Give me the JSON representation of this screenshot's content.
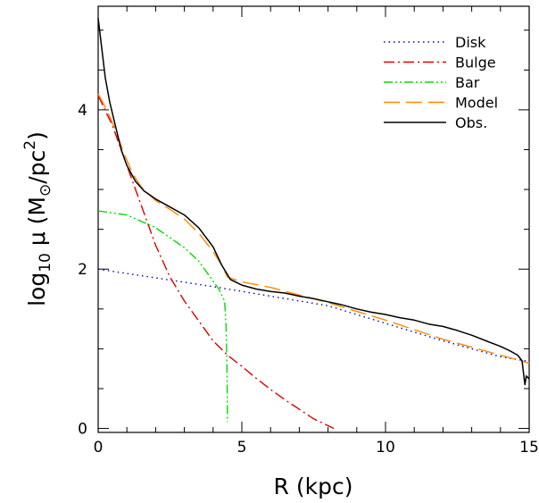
{
  "chart_data": {
    "type": "line",
    "xlabel": "R (kpc)",
    "ylabel_parts": {
      "main": "log",
      "sub": "10",
      "mid": " μ (M",
      "sun": "⊙",
      "unit": "/pc",
      "sup": "2",
      "close": ")"
    },
    "xlim": [
      0,
      15
    ],
    "ylim": [
      -0.05,
      5.3
    ],
    "x_ticks": [
      0,
      5,
      10,
      15
    ],
    "x_tick_labels": [
      "0",
      "5",
      "10",
      "15"
    ],
    "y_ticks": [
      0,
      2,
      4
    ],
    "y_tick_labels": [
      "0",
      "2",
      "4"
    ],
    "legend_position": "top-right",
    "series": [
      {
        "name": "Disk",
        "color": "#0000cc",
        "dash": "dotted",
        "x": [
          0,
          2,
          4,
          6,
          8,
          10,
          12,
          14,
          15
        ],
        "y": [
          2.0,
          1.89,
          1.78,
          1.66,
          1.54,
          1.32,
          1.1,
          0.9,
          0.84
        ]
      },
      {
        "name": "Bulge",
        "color": "#dd0000",
        "dash": "dashdot",
        "x": [
          0,
          0.5,
          1,
          1.5,
          2,
          2.5,
          3,
          3.5,
          4,
          4.5,
          5,
          5.5,
          6,
          6.5,
          7,
          7.5,
          8.2
        ],
        "y": [
          4.18,
          3.8,
          3.3,
          2.8,
          2.3,
          1.9,
          1.6,
          1.35,
          1.1,
          0.92,
          0.78,
          0.63,
          0.49,
          0.36,
          0.24,
          0.12,
          0.0
        ]
      },
      {
        "name": "Bar",
        "color": "#00dd00",
        "dash": "dashdotdot",
        "x": [
          0,
          1,
          2,
          3,
          3.5,
          4,
          4.2,
          4.4,
          4.45,
          4.48,
          4.5
        ],
        "y": [
          2.73,
          2.68,
          2.52,
          2.27,
          2.1,
          1.85,
          1.75,
          1.6,
          1.3,
          0.8,
          0.08
        ]
      },
      {
        "name": "Model",
        "color": "#ff8800",
        "dash": "longdash",
        "x": [
          0,
          0.3,
          0.6,
          0.9,
          1.2,
          1.5,
          2,
          2.5,
          3,
          3.5,
          4,
          4.3,
          4.5,
          5,
          6,
          8,
          10,
          12,
          14,
          15
        ],
        "y": [
          4.2,
          4.0,
          3.75,
          3.45,
          3.2,
          3.03,
          2.86,
          2.75,
          2.63,
          2.45,
          2.22,
          2.05,
          1.9,
          1.84,
          1.77,
          1.58,
          1.36,
          1.12,
          0.92,
          0.82
        ]
      },
      {
        "name": "Obs.",
        "color": "#000000",
        "dash": "solid",
        "x": [
          0,
          0.1,
          0.25,
          0.4,
          0.6,
          0.8,
          1.0,
          1.3,
          1.6,
          2.0,
          2.5,
          3.0,
          3.5,
          4.0,
          4.3,
          4.6,
          5.0,
          5.5,
          6.0,
          6.5,
          7.0,
          7.5,
          8.0,
          8.5,
          9.0,
          9.5,
          10.0,
          10.5,
          11.0,
          11.5,
          12.0,
          12.5,
          13.0,
          13.5,
          14.0,
          14.3,
          14.6,
          14.75,
          14.8,
          14.85,
          14.9,
          15.0
        ],
        "y": [
          5.15,
          4.85,
          4.4,
          4.1,
          3.8,
          3.5,
          3.3,
          3.1,
          2.98,
          2.88,
          2.78,
          2.68,
          2.52,
          2.28,
          2.05,
          1.87,
          1.8,
          1.75,
          1.72,
          1.7,
          1.66,
          1.63,
          1.59,
          1.55,
          1.5,
          1.46,
          1.43,
          1.39,
          1.36,
          1.31,
          1.28,
          1.23,
          1.17,
          1.1,
          1.03,
          0.98,
          0.92,
          0.85,
          0.7,
          0.55,
          0.66,
          0.62
        ]
      }
    ]
  }
}
